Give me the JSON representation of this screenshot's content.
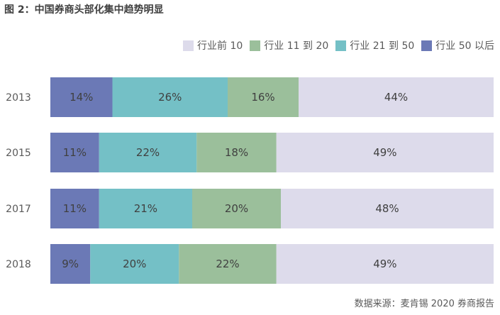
{
  "title": "图 2：中国券商头部化集中趋势明显",
  "source": "数据来源：麦肯锡 2020 券商报告",
  "colors": {
    "s1": "#6b79b6",
    "s2": "#74c0c6",
    "s3": "#9bbf9b",
    "s4": "#dddbeb"
  },
  "chart_data": {
    "type": "bar",
    "orientation": "horizontal",
    "stacked": true,
    "categories": [
      "2013",
      "2015",
      "2017",
      "2018"
    ],
    "series": [
      {
        "name": "行业 50 以后",
        "values": [
          14,
          11,
          11,
          9
        ],
        "labels": [
          "14%",
          "11%",
          "11%",
          "9%"
        ]
      },
      {
        "name": "行业 21 到 50",
        "values": [
          26,
          22,
          21,
          20
        ],
        "labels": [
          "26%",
          "22%",
          "21%",
          "20%"
        ]
      },
      {
        "name": "行业 11 到 20",
        "values": [
          16,
          18,
          20,
          22
        ],
        "labels": [
          "16%",
          "18%",
          "20%",
          "22%"
        ]
      },
      {
        "name": "行业前 10",
        "values": [
          44,
          49,
          48,
          49
        ],
        "labels": [
          "44%",
          "49%",
          "48%",
          "49%"
        ]
      }
    ],
    "legend_order": [
      "行业前 10",
      "行业 11 到 20",
      "行业 21 到 50",
      "行业 50 以后"
    ],
    "legend_position": "top-right",
    "grid": false
  }
}
